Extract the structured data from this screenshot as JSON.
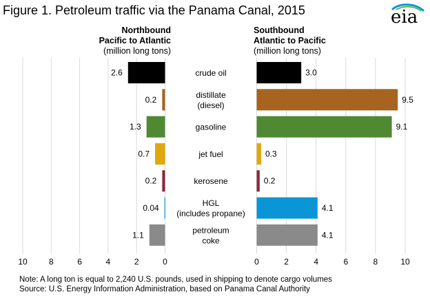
{
  "title": "Figure 1. Petroleum traffic via the Panama Canal, 2015",
  "logo": {
    "text": "eia",
    "icon": "eia-logo-icon"
  },
  "colors": {
    "crude_oil": "#000000",
    "distillate": "#a66420",
    "gasoline": "#4f8a33",
    "jet_fuel": "#e0a80d",
    "kerosene": "#8a2b3a",
    "hgl": "#0a96d6",
    "petroleum_coke": "#8a8a8a",
    "grid": "#d9d9d9"
  },
  "chart_data": [
    {
      "type": "bar",
      "orientation": "horizontal",
      "panel": "left",
      "title_bold": [
        "Northbound",
        "Pacific to Atlantic"
      ],
      "unit_label": "(million long tons)",
      "categories": [
        "crude oil",
        "distillate\n(diesel)",
        "gasoline",
        "jet fuel",
        "kerosene",
        "HGL\n(includes propane)",
        "petroleum\ncoke"
      ],
      "values": [
        2.6,
        0.2,
        1.3,
        0.7,
        0.2,
        0.04,
        1.1
      ],
      "value_labels": [
        "2.6",
        "0.2",
        "1.3",
        "0.7",
        "0.2",
        "0.04",
        "1.1"
      ],
      "xlim": [
        0,
        10
      ],
      "xticks": [
        10,
        8,
        6,
        4,
        2,
        0
      ],
      "direction": "reversed",
      "grid": true
    },
    {
      "type": "bar",
      "orientation": "horizontal",
      "panel": "right",
      "title_bold": [
        "Southbound",
        "Atlantic to Pacific"
      ],
      "unit_label": "(million long tons)",
      "categories": [
        "crude oil",
        "distillate\n(diesel)",
        "gasoline",
        "jet fuel",
        "kerosene",
        "HGL\n(includes propane)",
        "petroleum\ncoke"
      ],
      "values": [
        3.0,
        9.5,
        9.1,
        0.3,
        0.2,
        4.1,
        4.1
      ],
      "value_labels": [
        "3.0",
        "9.5",
        "9.1",
        "0.3",
        "0.2",
        "4.1",
        "4.1"
      ],
      "xlim": [
        0,
        10
      ],
      "xticks": [
        0,
        2,
        4,
        6,
        8,
        10
      ],
      "grid": true
    }
  ],
  "categories_center": [
    [
      "crude oil"
    ],
    [
      "distillate",
      "(diesel)"
    ],
    [
      "gasoline"
    ],
    [
      "jet fuel"
    ],
    [
      "kerosene"
    ],
    [
      "HGL",
      "(includes propane)"
    ],
    [
      "petroleum",
      "coke"
    ]
  ],
  "notes": {
    "note": "Note: A long ton is equal to 2,240 U.S. pounds, used in shipping to denote cargo volumes",
    "source": "Source: U.S. Energy Information Administration, based on Panama Canal Authority"
  }
}
